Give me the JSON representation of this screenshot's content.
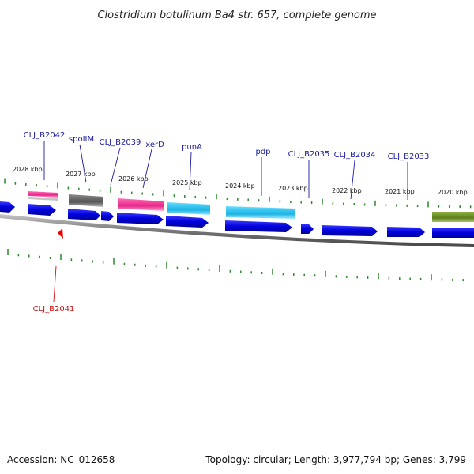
{
  "title": "Clostridium botulinum Ba4 str. 657, complete genome",
  "accession": "Accession: NC_012658",
  "topology": "Topology: circular; Length: 3,977,794 bp; Genes: 3,799",
  "kbp_labels": [
    "2028 kbp",
    "2027 kbp",
    "2026 kbp",
    "2025 kbp",
    "2024 kbp",
    "2023 kbp",
    "2022 kbp",
    "2021 kbp",
    "2020 kbp"
  ],
  "gene_labels": {
    "g2042": "CLJ_B2042",
    "spoIIM": "spoIIM",
    "g2039": "CLJ_B2039",
    "xerD": "xerD",
    "punA": "punA",
    "pdp": "pdp",
    "g2035": "CLJ_B2035",
    "g2034": "CLJ_B2034",
    "g2033": "CLJ_B2033",
    "g2041": "CLJ_B2041"
  },
  "colors": {
    "cds": "#0000ee",
    "pink": "#e8258a",
    "gray": "#666666",
    "cyan": "#22c4ee",
    "olive": "#6b8e23",
    "tick": "#2a8a2a",
    "backbone": "#888888",
    "highlight": "#ee0000"
  }
}
